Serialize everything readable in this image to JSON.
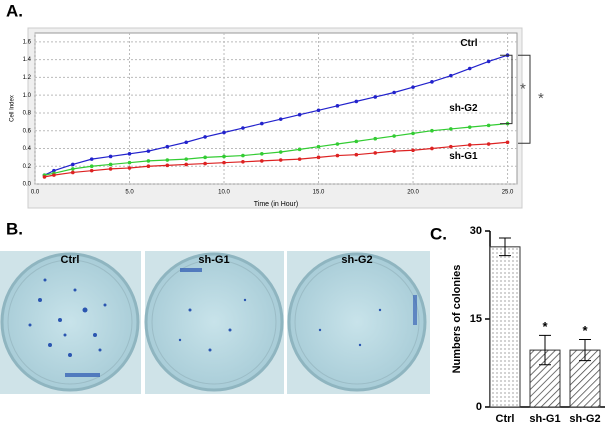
{
  "panel_labels": [
    "A.",
    "B.",
    "C."
  ],
  "plates": [
    "Ctrl",
    "sh-G1",
    "sh-G2"
  ],
  "chart_data": [
    {
      "type": "line",
      "x_label": "Time (in Hour)",
      "y_label": "Cell Index",
      "x": [
        0.5,
        1,
        2,
        3,
        4,
        5,
        6,
        7,
        8,
        9,
        10,
        11,
        12,
        13,
        14,
        15,
        16,
        17,
        18,
        19,
        20,
        21,
        22,
        23,
        24,
        25
      ],
      "series": [
        {
          "name": "Ctrl",
          "color": "#2222cc",
          "values": [
            0.1,
            0.15,
            0.22,
            0.28,
            0.31,
            0.34,
            0.37,
            0.42,
            0.47,
            0.53,
            0.58,
            0.63,
            0.68,
            0.73,
            0.78,
            0.83,
            0.88,
            0.93,
            0.98,
            1.03,
            1.09,
            1.15,
            1.22,
            1.3,
            1.38,
            1.45
          ]
        },
        {
          "name": "sh-G2",
          "color": "#33cc33",
          "values": [
            0.1,
            0.12,
            0.17,
            0.2,
            0.22,
            0.24,
            0.26,
            0.27,
            0.28,
            0.3,
            0.31,
            0.32,
            0.34,
            0.36,
            0.39,
            0.42,
            0.45,
            0.48,
            0.51,
            0.54,
            0.57,
            0.6,
            0.62,
            0.64,
            0.66,
            0.68
          ]
        },
        {
          "name": "sh-G1",
          "color": "#dd2222",
          "values": [
            0.08,
            0.1,
            0.13,
            0.15,
            0.17,
            0.18,
            0.2,
            0.21,
            0.22,
            0.23,
            0.24,
            0.25,
            0.26,
            0.27,
            0.28,
            0.3,
            0.32,
            0.33,
            0.35,
            0.37,
            0.38,
            0.4,
            0.42,
            0.44,
            0.45,
            0.47
          ]
        }
      ],
      "annotations": [
        "*",
        "*"
      ],
      "xlim": [
        0,
        25.5
      ],
      "ylim": [
        0,
        1.7
      ],
      "xticks": [
        {
          "value": 0,
          "label": "0.0"
        },
        {
          "value": 5,
          "label": "5.0"
        },
        {
          "value": 10,
          "label": "10.0"
        },
        {
          "value": 15,
          "label": "15.0"
        },
        {
          "value": 20,
          "label": "20.0"
        },
        {
          "value": 25,
          "label": "25.0"
        }
      ],
      "yticks": [
        {
          "value": 0,
          "label": "0.0"
        },
        0.2,
        0.4,
        0.6,
        0.8,
        {
          "value": 1,
          "label": "1.0"
        },
        1.2,
        1.4,
        1.6
      ],
      "grid": true
    },
    {
      "type": "bar",
      "y_label": "Numbers of colonies",
      "categories": [
        "Ctrl",
        "sh-G1",
        "sh-G2"
      ],
      "values": [
        27.3,
        9.7,
        9.7
      ],
      "errors": [
        1.5,
        2.5,
        1.8
      ],
      "significance": [
        null,
        "*",
        "*"
      ],
      "ylim": [
        0,
        30
      ],
      "yticks": [
        0,
        15,
        30
      ]
    }
  ]
}
